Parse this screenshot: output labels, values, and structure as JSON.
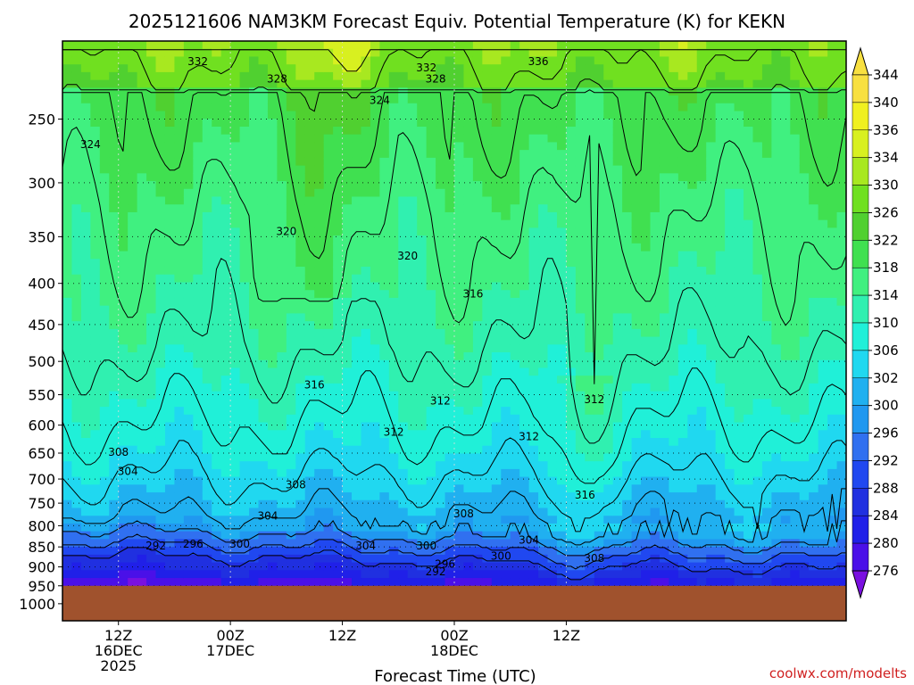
{
  "title": "2025121606 NAM3KM Forecast Equiv. Potential Temperature (K) for KEKN",
  "credit": "coolwx.com/modelts",
  "chart_data": {
    "type": "heatmap",
    "variable": "Equivalent Potential Temperature",
    "units": "K",
    "xlabel": "Forecast Time (UTC)",
    "ylabel": "",
    "y_scale": "log",
    "y_pressure_ticks": [
      250,
      300,
      350,
      400,
      450,
      500,
      550,
      600,
      650,
      700,
      750,
      800,
      850,
      900,
      950,
      1000
    ],
    "y_top_hpa": 200,
    "y_bottom_hpa": 1050,
    "x_range_forecast_hours": [
      0,
      84
    ],
    "x_ticks": [
      {
        "hour": 6,
        "label": [
          "12Z",
          "16DEC",
          "2025"
        ]
      },
      {
        "hour": 18,
        "label": [
          "00Z",
          "17DEC"
        ]
      },
      {
        "hour": 30,
        "label": [
          "12Z"
        ]
      },
      {
        "hour": 42,
        "label": [
          "00Z",
          "18DEC"
        ]
      },
      {
        "hour": 54,
        "label": [
          "12Z"
        ]
      }
    ],
    "colorbar_levels": [
      276,
      280,
      284,
      288,
      292,
      296,
      300,
      302,
      306,
      310,
      314,
      318,
      322,
      326,
      330,
      334,
      336,
      340,
      344
    ],
    "colorbar_colors": [
      "#7a10e0",
      "#4a10e8",
      "#2020e8",
      "#2030e0",
      "#2048f0",
      "#3070f0",
      "#2098f0",
      "#20b0f0",
      "#20d8f0",
      "#20f0d8",
      "#30f0b0",
      "#40f080",
      "#40e050",
      "#50d030",
      "#70e020",
      "#a8e820",
      "#d8f020",
      "#f0f020",
      "#f8e040"
    ],
    "ground_color": "#a0522d",
    "ground_pressure_hpa": 950,
    "contour_labels": [
      {
        "text": "332",
        "hour": 14.5,
        "p": 212
      },
      {
        "text": "328",
        "hour": 23,
        "p": 223
      },
      {
        "text": "332",
        "hour": 39,
        "p": 216
      },
      {
        "text": "328",
        "hour": 40,
        "p": 223
      },
      {
        "text": "336",
        "hour": 51,
        "p": 212
      },
      {
        "text": "324",
        "hour": 34,
        "p": 237
      },
      {
        "text": "324",
        "hour": 3,
        "p": 269
      },
      {
        "text": "320",
        "hour": 24,
        "p": 345
      },
      {
        "text": "320",
        "hour": 37,
        "p": 370
      },
      {
        "text": "316",
        "hour": 44,
        "p": 412
      },
      {
        "text": "316",
        "hour": 27,
        "p": 535
      },
      {
        "text": "312",
        "hour": 40.5,
        "p": 560
      },
      {
        "text": "312",
        "hour": 35.5,
        "p": 612
      },
      {
        "text": "312",
        "hour": 50,
        "p": 620
      },
      {
        "text": "312",
        "hour": 57,
        "p": 558
      },
      {
        "text": "308",
        "hour": 6,
        "p": 648
      },
      {
        "text": "304",
        "hour": 7,
        "p": 685
      },
      {
        "text": "308",
        "hour": 25,
        "p": 712
      },
      {
        "text": "316",
        "hour": 56,
        "p": 733
      },
      {
        "text": "308",
        "hour": 43,
        "p": 773
      },
      {
        "text": "304",
        "hour": 22,
        "p": 778
      },
      {
        "text": "292",
        "hour": 10,
        "p": 848
      },
      {
        "text": "296",
        "hour": 14,
        "p": 843
      },
      {
        "text": "300",
        "hour": 19,
        "p": 843
      },
      {
        "text": "304",
        "hour": 32.5,
        "p": 848
      },
      {
        "text": "300",
        "hour": 39,
        "p": 848
      },
      {
        "text": "304",
        "hour": 50,
        "p": 833
      },
      {
        "text": "300",
        "hour": 47,
        "p": 873
      },
      {
        "text": "308",
        "hour": 57,
        "p": 878
      },
      {
        "text": "296",
        "hour": 41,
        "p": 893
      },
      {
        "text": "292",
        "hour": 40,
        "p": 913
      }
    ]
  }
}
